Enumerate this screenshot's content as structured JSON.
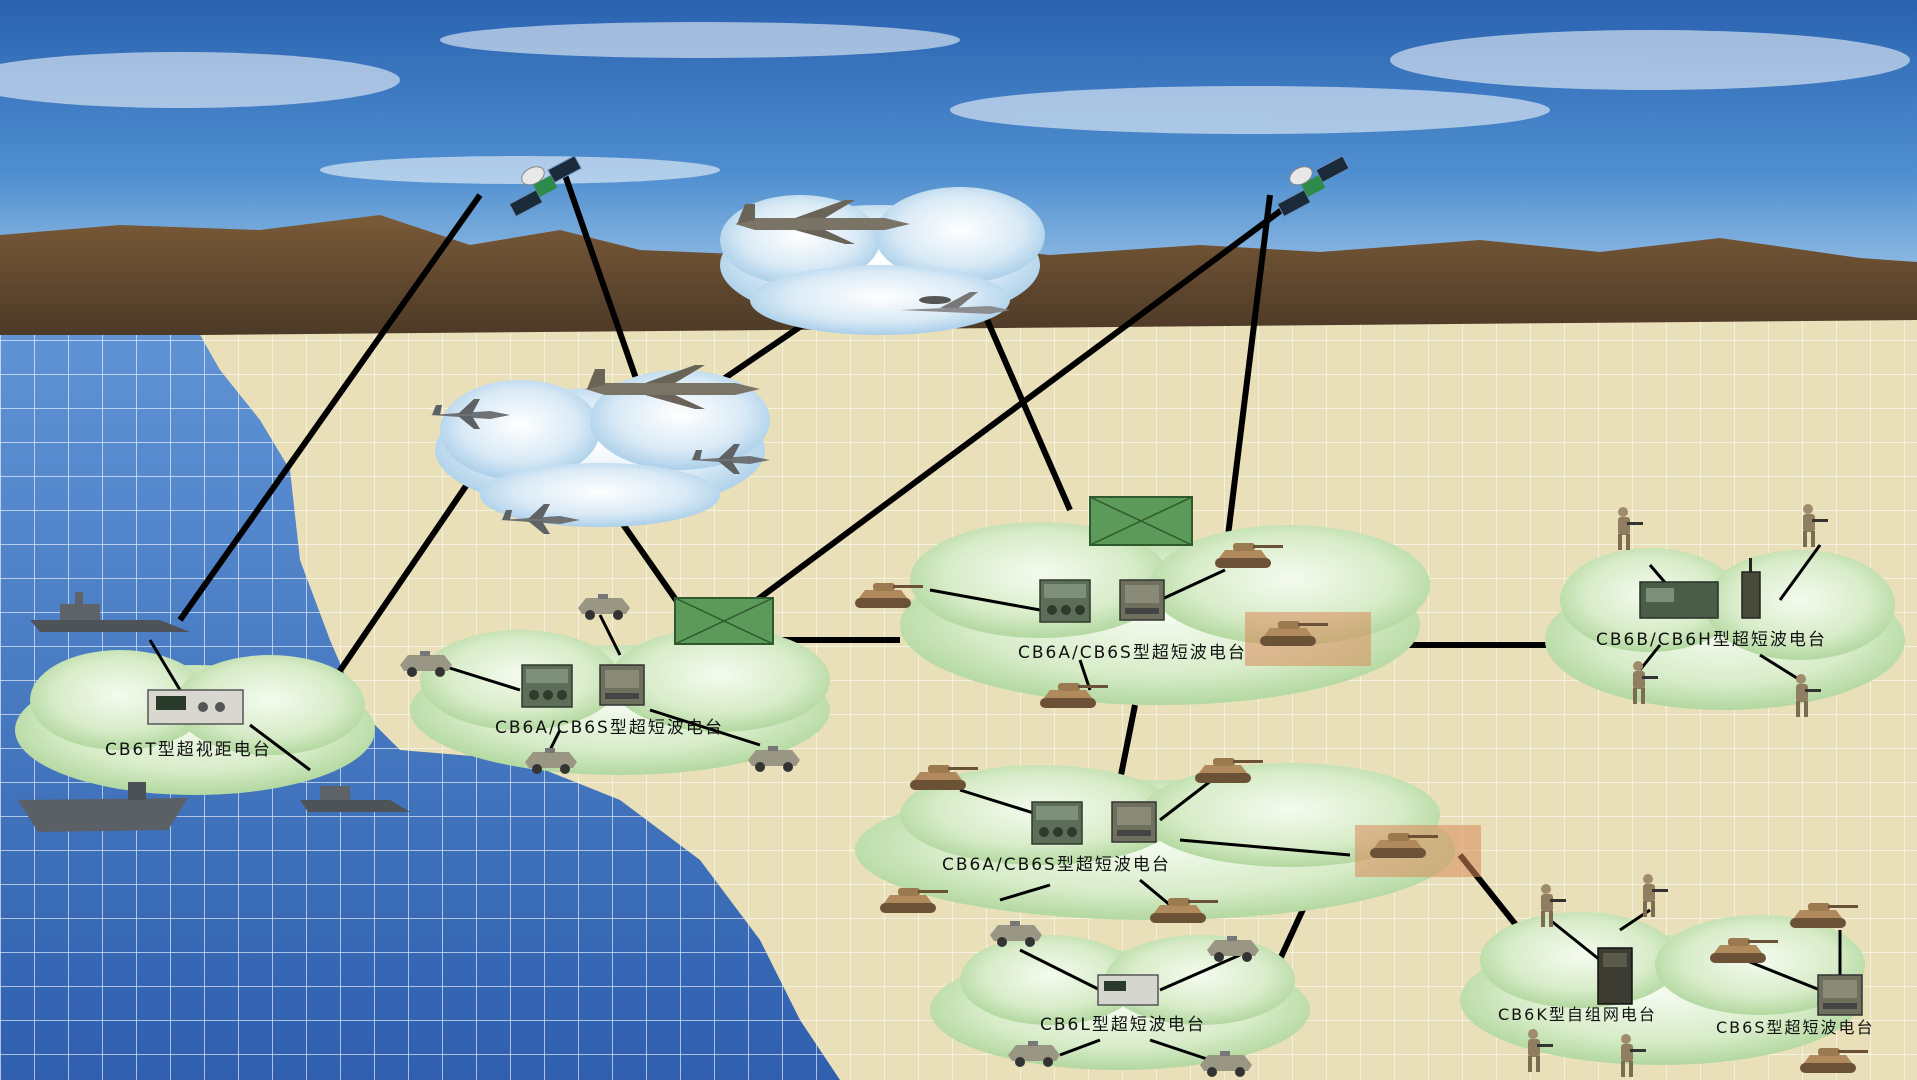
{
  "diagram": {
    "type": "tactical-radio-network",
    "labels": {
      "ship_net": "CB6T型超视距电台",
      "left_net": "CB6A/CB6S型超短波电台",
      "center_net": "CB6A/CB6S型超短波电台",
      "lower_net": "CB6A/CB6S型超短波电台",
      "soldier_net": "CB6B/CB6H型超短波电台",
      "bottom_net": "CB6L型超短波电台",
      "adhoc_net": "CB6K型自组网电台",
      "adhoc_sub": "CB6S型超短波电台"
    },
    "icons": [
      "satellite-icon",
      "transport-plane-icon",
      "awacs-icon",
      "fighter-jet-icon",
      "warship-icon",
      "aircraft-carrier-icon",
      "tank-icon",
      "armored-car-icon",
      "soldier-icon",
      "radio-station-icon",
      "manpack-radio-icon",
      "relay-box-icon"
    ],
    "colors": {
      "sky": "#2f6db8",
      "sea": "#3f74bd",
      "sand": "#e9dfb8",
      "cloud_green": "#bfe0b0",
      "cloud_blue": "#b9d8ee",
      "relay_green": "#5b9a58",
      "link": "#000000",
      "highlight": "#d98a5a"
    }
  }
}
